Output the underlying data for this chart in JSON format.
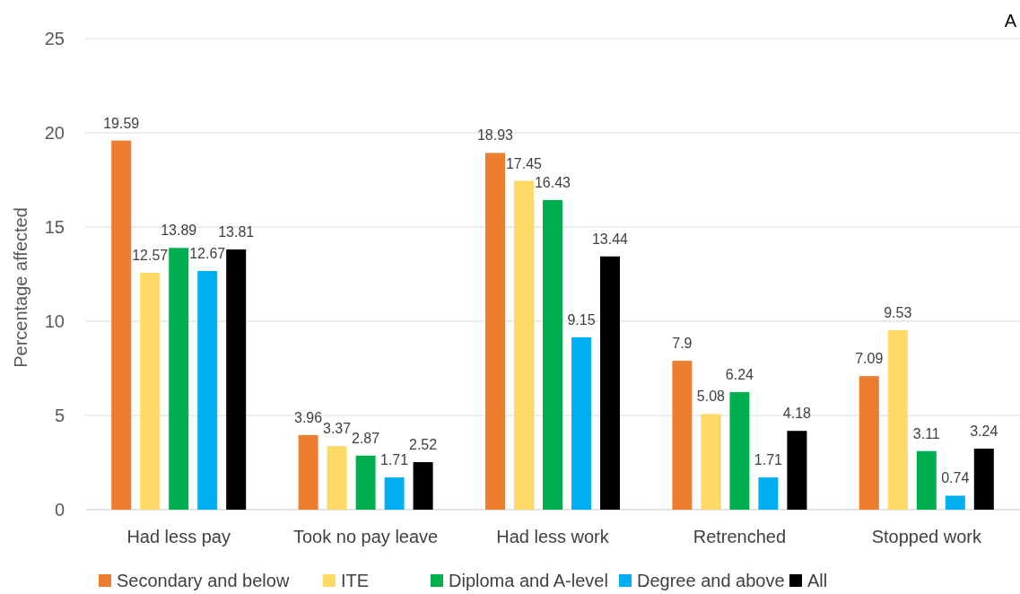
{
  "chart_data": {
    "type": "bar",
    "ylabel": "Percentage affected",
    "annotations": [
      "A"
    ],
    "categories": [
      "Had less pay",
      "Took no pay leave",
      "Had less work",
      "Retrenched",
      "Stopped work"
    ],
    "series": [
      {
        "name": "Secondary and below",
        "color": "#ed7d31",
        "values": [
          19.59,
          3.96,
          18.93,
          7.9,
          7.09
        ]
      },
      {
        "name": "ITE",
        "color": "#ffd966",
        "values": [
          12.57,
          3.37,
          17.45,
          5.08,
          9.53
        ]
      },
      {
        "name": "Diploma and A-level",
        "color": "#00b050",
        "values": [
          13.89,
          2.87,
          16.43,
          6.24,
          3.11
        ]
      },
      {
        "name": "Degree and above",
        "color": "#00b0f0",
        "values": [
          12.67,
          1.71,
          9.15,
          1.71,
          0.74
        ]
      },
      {
        "name": "All",
        "color": "#000000",
        "values": [
          13.81,
          2.52,
          13.44,
          4.18,
          3.24
        ]
      }
    ],
    "ylim": [
      0,
      25
    ],
    "yticks": [
      0,
      5,
      10,
      15,
      20,
      25
    ],
    "grid": "y",
    "legend": "bottom",
    "data_labels": true
  }
}
